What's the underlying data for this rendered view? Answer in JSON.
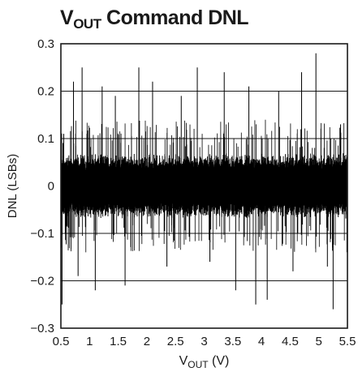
{
  "chart_data": {
    "type": "line",
    "title": {
      "main": "V",
      "sub": "OUT",
      "rest": " Command DNL"
    },
    "xlabel": {
      "main": "V",
      "sub": "OUT",
      "rest": " (V)"
    },
    "ylabel": "DNL (LSBs)",
    "xlim": [
      0.5,
      5.5
    ],
    "ylim": [
      -0.3,
      0.3
    ],
    "x_ticks": [
      "0.5",
      "1",
      "1.5",
      "2",
      "2.5",
      "3",
      "3.5",
      "4",
      "4.5",
      "5",
      "5.5"
    ],
    "y_ticks": [
      "0.3",
      "0.2",
      "0.1",
      "0",
      "−0.1",
      "−0.2",
      "−0.3"
    ],
    "grid": true,
    "color": "#000000",
    "band": {
      "typical_range": [
        -0.07,
        0.07
      ]
    },
    "series": [
      {
        "values_note_excluded": true,
        "spikes": [
          {
            "x": 0.52,
            "y": -0.25
          },
          {
            "x": 0.55,
            "y": 0.11
          },
          {
            "x": 0.72,
            "y": 0.22
          },
          {
            "x": 0.8,
            "y": -0.19
          },
          {
            "x": 0.87,
            "y": 0.25
          },
          {
            "x": 1.1,
            "y": -0.22
          },
          {
            "x": 1.22,
            "y": 0.21
          },
          {
            "x": 1.45,
            "y": 0.19
          },
          {
            "x": 1.62,
            "y": -0.21
          },
          {
            "x": 1.86,
            "y": 0.25
          },
          {
            "x": 2.1,
            "y": 0.22
          },
          {
            "x": 2.35,
            "y": -0.17
          },
          {
            "x": 2.6,
            "y": 0.19
          },
          {
            "x": 2.88,
            "y": 0.25
          },
          {
            "x": 3.1,
            "y": -0.16
          },
          {
            "x": 3.35,
            "y": 0.24
          },
          {
            "x": 3.55,
            "y": -0.22
          },
          {
            "x": 3.9,
            "y": -0.25
          },
          {
            "x": 3.78,
            "y": 0.21
          },
          {
            "x": 4.1,
            "y": -0.24
          },
          {
            "x": 4.3,
            "y": 0.2
          },
          {
            "x": 4.55,
            "y": -0.18
          },
          {
            "x": 4.7,
            "y": 0.24
          },
          {
            "x": 4.95,
            "y": 0.28
          },
          {
            "x": 5.15,
            "y": -0.17
          },
          {
            "x": 5.25,
            "y": -0.26
          },
          {
            "x": 5.38,
            "y": 0.13
          }
        ]
      }
    ]
  }
}
